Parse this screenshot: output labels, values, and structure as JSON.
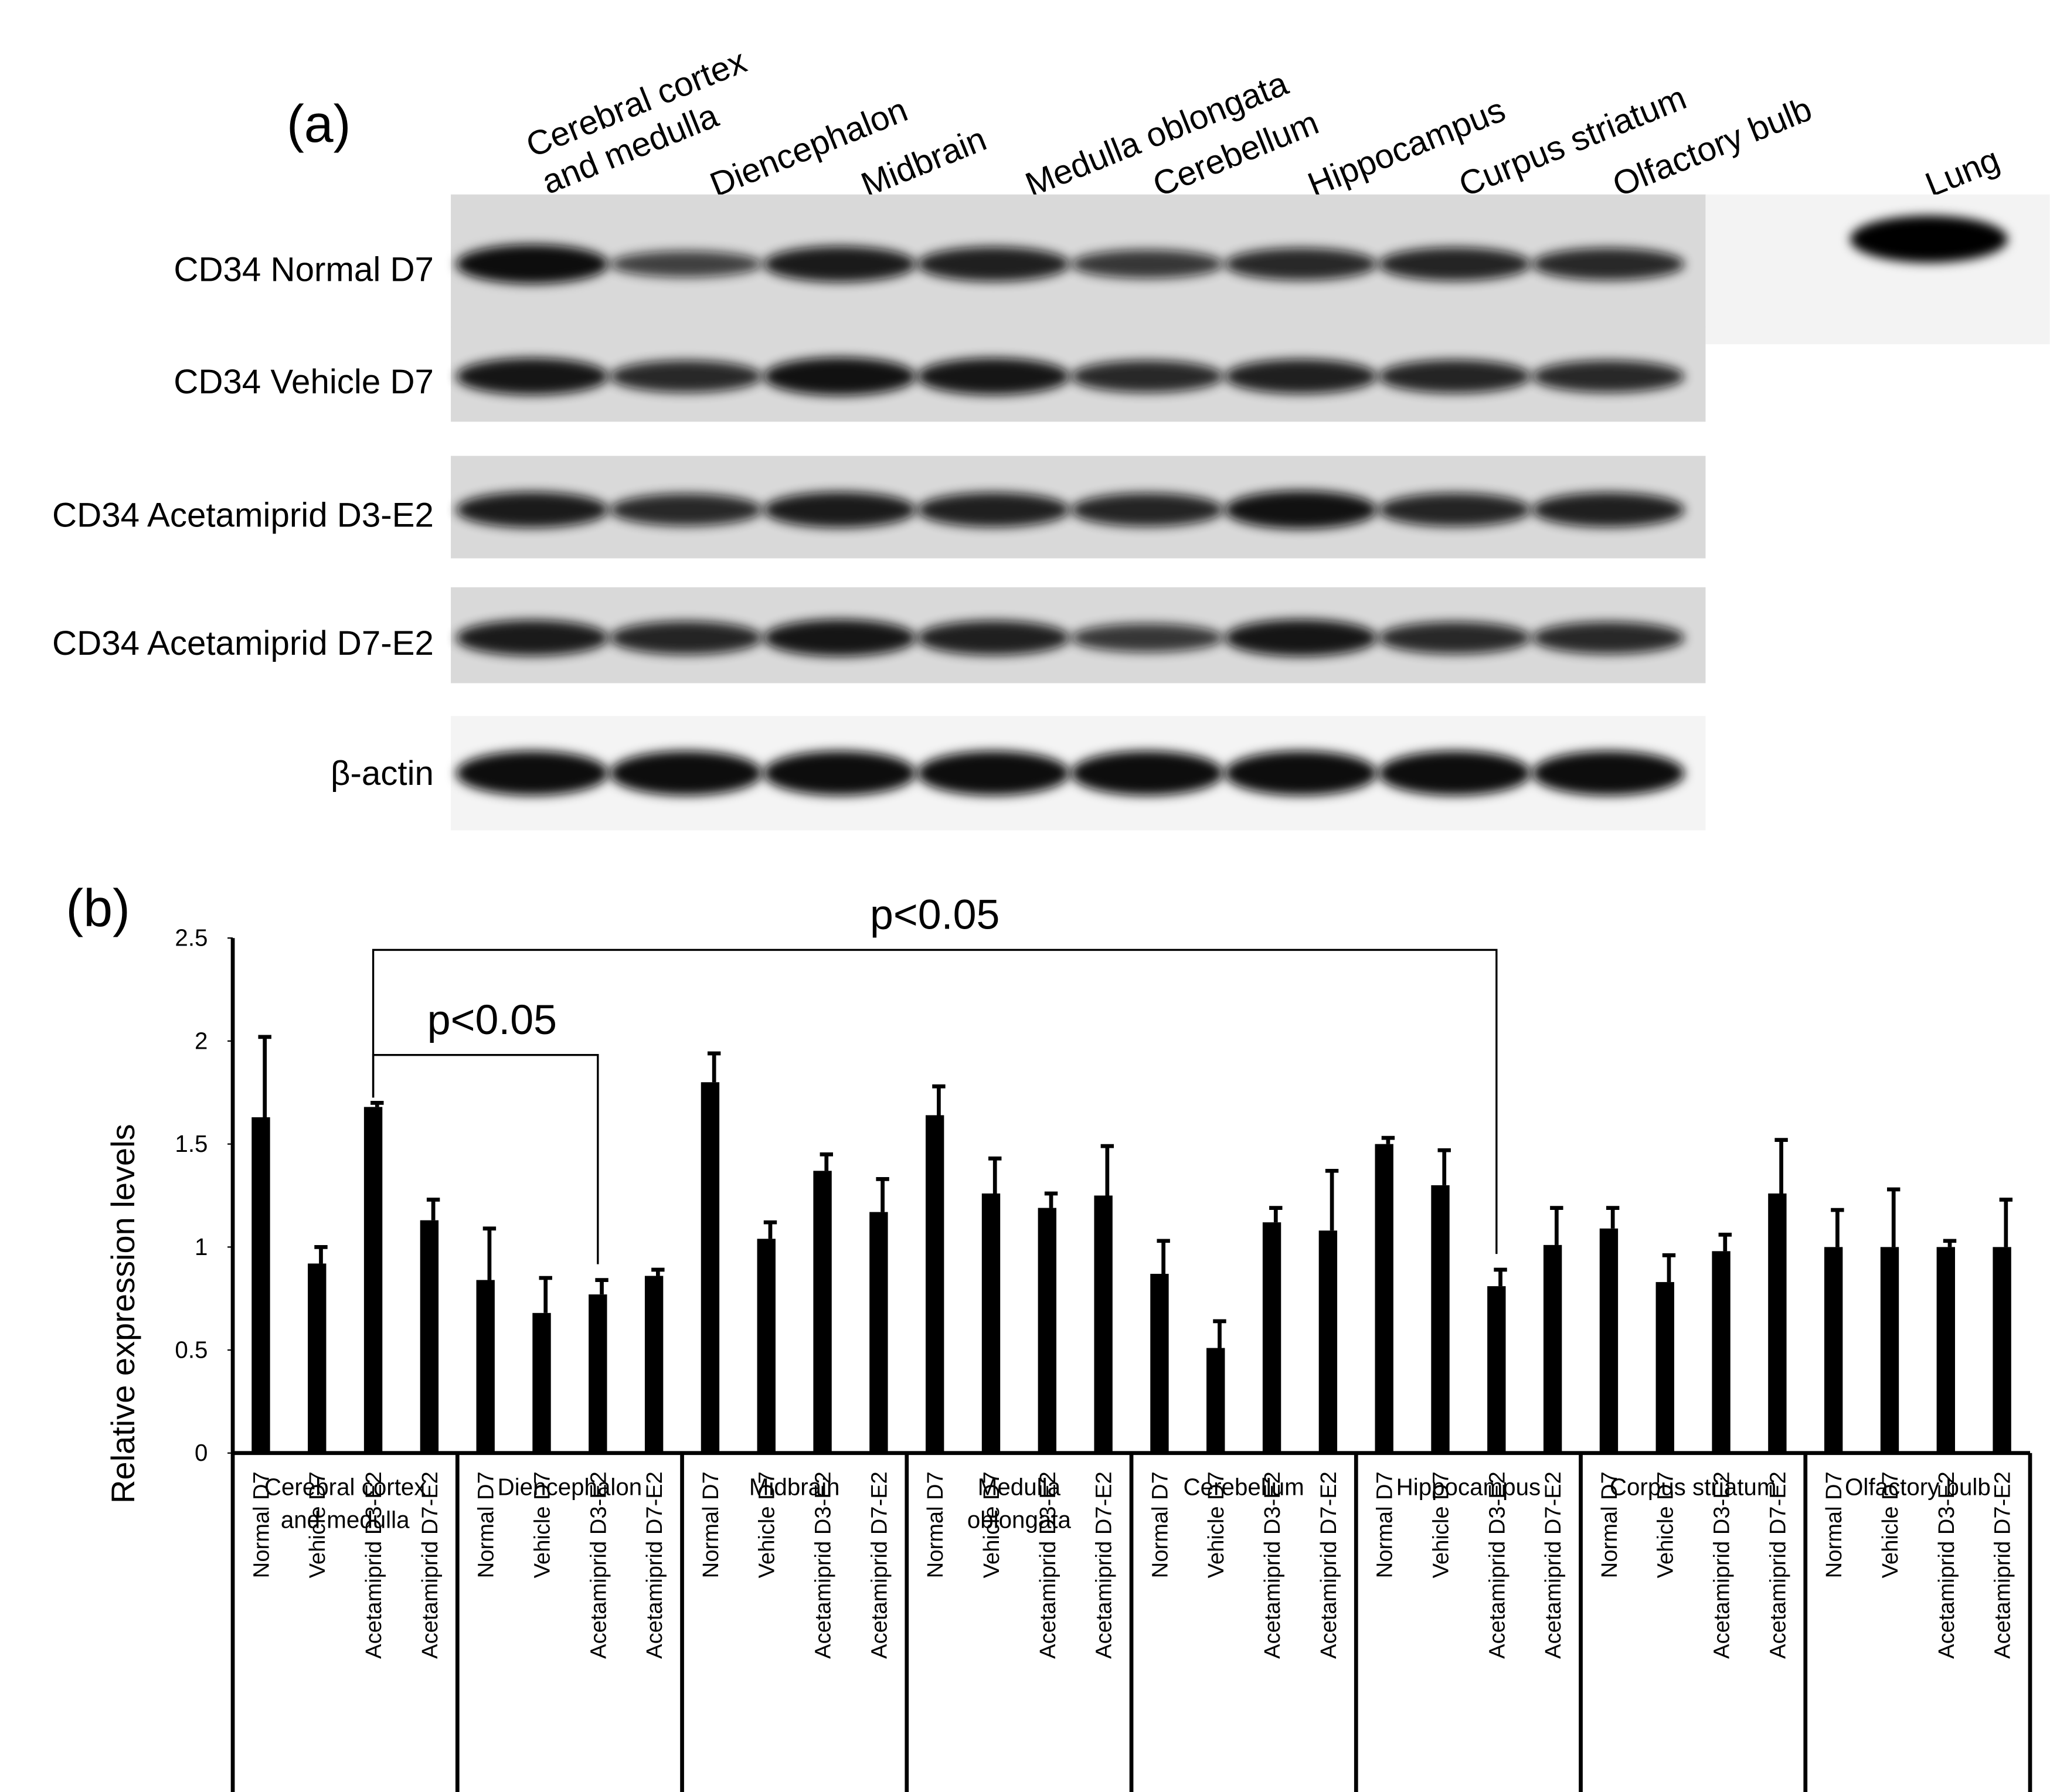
{
  "blot": {
    "panel_label": "(a)",
    "lanes": [
      [
        "Cerebral cortex",
        "and medulla"
      ],
      [
        "Diencephalon"
      ],
      [
        "Midbrain"
      ],
      [
        "Medulla oblongata"
      ],
      [
        "Cerebellum"
      ],
      [
        "Hippocampus"
      ],
      [
        "Curpus striatum"
      ],
      [
        "Olfactory bulb"
      ]
    ],
    "extra_lane": "Lung",
    "rows": [
      "CD34 Normal D7",
      "CD34 Vehicle D7",
      "CD34 Acetamiprid D3-E2",
      "CD34 Acetamiprid D7-E2",
      "β-actin"
    ]
  },
  "chart_data": {
    "type": "bar",
    "panel_label": "(b)",
    "ylabel": "Relative expression levels",
    "groups": [
      [
        "Cerebral cortex",
        "and medulla"
      ],
      [
        "Diencephalon"
      ],
      [
        "Midbrain"
      ],
      [
        "Medulla",
        "oblongata"
      ],
      [
        "Cerebellum"
      ],
      [
        "Hippocampus"
      ],
      [
        "Corpus striatum"
      ],
      [
        "Olfactory bulb"
      ]
    ],
    "categories": [
      "Normal D7",
      "Vehicle D7",
      "Acetamiprid D3-E2",
      "Acetamiprid D7-E2",
      "Normal D7",
      "Vehicle D7",
      "Acetamiprid D3-E2",
      "Acetamiprid D7-E2",
      "Normal D7",
      "Vehicle D7",
      "Acetamiprid D3-E2",
      "Acetamiprid D7-E2",
      "Normal D7",
      "Vehicle D7",
      "Acetamiprid D3-E2",
      "Acetamiprid D7-E2",
      "Normal D7",
      "Vehicle D7",
      "Acetamiprid D3-E2",
      "Acetamiprid D7-E2",
      "Normal D7",
      "Vehicle D7",
      "Acetamiprid D3-E2",
      "Acetamiprid D7-E2",
      "Normal D7",
      "Vehicle D7",
      "Acetamiprid D3-E2",
      "Acetamiprid D7-E2",
      "Normal D7",
      "Vehicle D7",
      "Acetamiprid D3-E2",
      "Acetamiprid D7-E2"
    ],
    "values": [
      1.63,
      0.92,
      1.68,
      1.13,
      0.84,
      0.68,
      0.77,
      0.86,
      1.8,
      1.04,
      1.37,
      1.17,
      1.64,
      1.26,
      1.19,
      1.25,
      0.87,
      0.51,
      1.12,
      1.08,
      1.5,
      1.3,
      0.81,
      1.01,
      1.09,
      0.83,
      0.98,
      1.26,
      1.0,
      1.0,
      1.0,
      1.0
    ],
    "errors": [
      0.39,
      0.08,
      0.02,
      0.1,
      0.25,
      0.17,
      0.07,
      0.03,
      0.14,
      0.08,
      0.08,
      0.16,
      0.14,
      0.17,
      0.07,
      0.24,
      0.16,
      0.13,
      0.07,
      0.29,
      0.03,
      0.17,
      0.08,
      0.18,
      0.1,
      0.13,
      0.08,
      0.26,
      0.18,
      0.28,
      0.03,
      0.23
    ],
    "color": "#000000",
    "ylim": [
      0,
      2.5
    ],
    "yticks": [
      0,
      0.5,
      1,
      1.5,
      2,
      2.5
    ],
    "annotations": [
      "p<0.05",
      "p<0.05"
    ]
  }
}
